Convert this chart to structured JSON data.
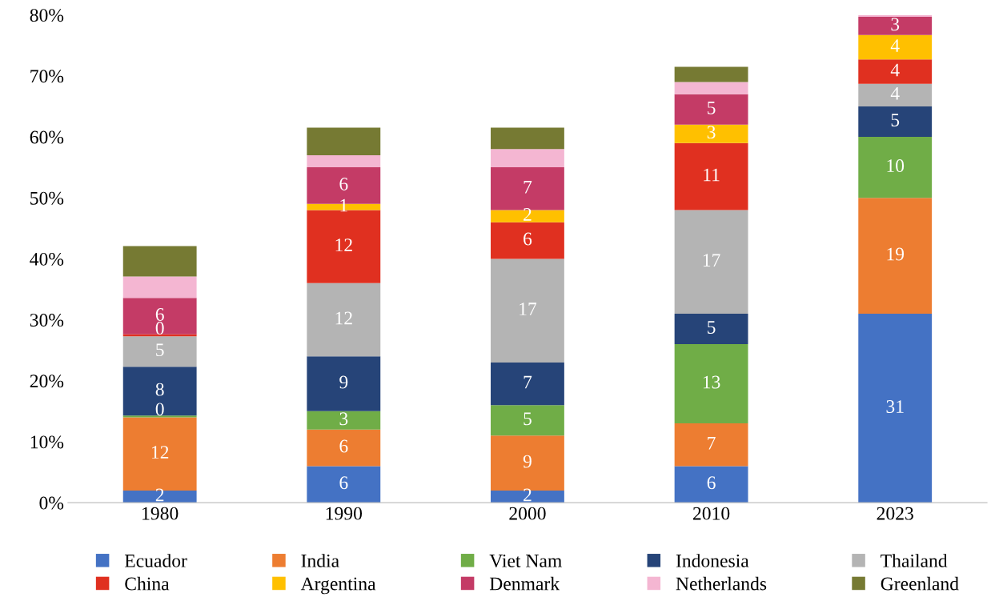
{
  "chart_data": {
    "type": "bar",
    "stacked": true,
    "categories": [
      "1980",
      "1990",
      "2000",
      "2010",
      "2023"
    ],
    "ylim": [
      0,
      80
    ],
    "yticks": [
      {
        "value": 0,
        "label": "0%"
      },
      {
        "value": 10,
        "label": "10%"
      },
      {
        "value": 20,
        "label": "20%"
      },
      {
        "value": 30,
        "label": "30%"
      },
      {
        "value": 40,
        "label": "40%"
      },
      {
        "value": 50,
        "label": "50%"
      },
      {
        "value": 60,
        "label": "60%"
      },
      {
        "value": 70,
        "label": "70%"
      },
      {
        "value": 80,
        "label": "80%"
      }
    ],
    "grid": false,
    "legend": "bottom",
    "series": [
      {
        "name": "Ecuador",
        "color": "#4472c4",
        "values": [
          2,
          6,
          2,
          6,
          31
        ],
        "value_labels": [
          "2",
          "6",
          "2",
          "6",
          "31"
        ]
      },
      {
        "name": "India",
        "color": "#ed7d31",
        "values": [
          12,
          6,
          9,
          7,
          19
        ],
        "value_labels": [
          "12",
          "6",
          "9",
          "7",
          "19"
        ]
      },
      {
        "name": "Viet Nam",
        "color": "#70ad47",
        "values": [
          0.3,
          3,
          5,
          13,
          10
        ],
        "value_labels": [
          "0",
          "3",
          "5",
          "13",
          "10"
        ]
      },
      {
        "name": "Indonesia",
        "color": "#264478",
        "values": [
          8,
          9,
          7,
          5,
          5
        ],
        "value_labels": [
          "8",
          "9",
          "7",
          "5",
          "5"
        ]
      },
      {
        "name": "Thailand",
        "color": "#b4b4b4",
        "values": [
          5,
          12,
          17,
          17,
          3.7
        ],
        "value_labels": [
          "5",
          "12",
          "17",
          "17",
          "4"
        ]
      },
      {
        "name": "China",
        "color": "#e03020",
        "values": [
          0.3,
          12,
          6,
          11,
          4
        ],
        "value_labels": [
          "0",
          "12",
          "6",
          "11",
          "4"
        ]
      },
      {
        "name": "Argentina",
        "color": "#ffc000",
        "values": [
          0,
          1,
          2,
          3,
          4
        ],
        "value_labels": [
          null,
          "1",
          "2",
          "3",
          "4"
        ]
      },
      {
        "name": "Denmark",
        "color": "#c43b66",
        "values": [
          6,
          6,
          7,
          5,
          3
        ],
        "value_labels": [
          "6",
          "6",
          "7",
          "5",
          "3"
        ]
      },
      {
        "name": "Netherlands",
        "color": "#f4b6d2",
        "values": [
          3.5,
          2,
          3,
          2,
          0.3
        ]
      },
      {
        "name": "Greenland",
        "color": "#767a33",
        "values": [
          5,
          4.5,
          3.5,
          2.5,
          null
        ]
      }
    ]
  }
}
